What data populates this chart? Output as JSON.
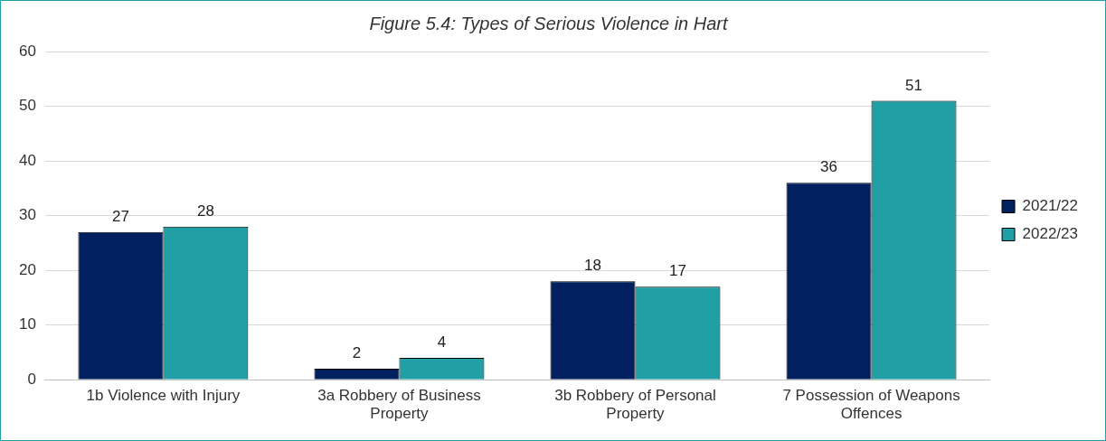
{
  "chart_data": {
    "type": "bar",
    "title": "Figure 5.4: Types of Serious Violence in Hart",
    "categories": [
      "1b Violence with Injury",
      "3a Robbery of Business Property",
      "3b Robbery of Personal Property",
      "7 Possession of Weapons Offences"
    ],
    "series": [
      {
        "name": "2021/22",
        "color": "#002060",
        "values": [
          27,
          2,
          18,
          36
        ]
      },
      {
        "name": "2022/23",
        "color": "#20a0a4",
        "values": [
          28,
          4,
          17,
          51
        ]
      }
    ],
    "ylim": [
      0,
      60
    ],
    "yticks": [
      0,
      10,
      20,
      30,
      40,
      50,
      60
    ],
    "grid": "y",
    "legend": "right",
    "data_labels": true
  }
}
